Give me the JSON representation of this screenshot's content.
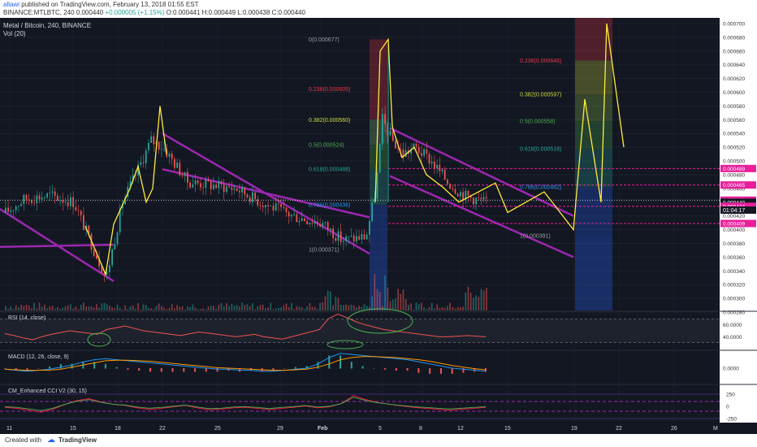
{
  "header": {
    "author": "allawi",
    "published": "published on TradingView.com, February 13, 2018 01:55 EST",
    "symbol": "BINANCE:MTLBTC, 240",
    "last": "0.000440",
    "change": "+0.000005 (+1.15%)",
    "open": "O:0.000441",
    "high": "H:0.000449",
    "low": "L:0.000438",
    "close": "C:0.000440"
  },
  "chart": {
    "title": "Metal / Bitcoin, 240, BINANCE",
    "volume_label": "Vol (20)",
    "countdown": "01:04:17",
    "colors": {
      "background": "#131722",
      "bull": "#26a69a",
      "bear": "#ef5350",
      "channel": "#9c27b0",
      "path": "#ffeb3b",
      "level": "#e91e9b"
    }
  },
  "chart_data": [
    {
      "type": "candlestick",
      "title": "Metal / Bitcoin, 240, BINANCE",
      "ylim": [
        0.00028,
        0.0007
      ],
      "price_ticks": [
        "0.000700",
        "0.000680",
        "0.000660",
        "0.000640",
        "0.000620",
        "0.000600",
        "0.000580",
        "0.000560",
        "0.000540",
        "0.000520",
        "0.000500",
        "0.000480",
        "0.000460",
        "0.000440",
        "0.000420",
        "0.000400",
        "0.000380",
        "0.000360",
        "0.000340",
        "0.000320",
        "0.000300",
        "0.000280"
      ],
      "x_ticks": [
        "11",
        "15",
        "18",
        "22",
        "25",
        "29",
        "Feb",
        "5",
        "8",
        "12",
        "15",
        "19",
        "22",
        "26",
        "M"
      ],
      "price_tags": [
        "0.000489",
        "0.000465",
        "0.000443",
        "0.000440",
        "0.000434",
        "0.000409"
      ],
      "fib_left": [
        {
          "label": "0(0.000677)",
          "value": 0.000677
        },
        {
          "label": "0.236(0.000605)",
          "value": 0.000605
        },
        {
          "label": "0.382(0.000560)",
          "value": 0.00056
        },
        {
          "label": "0.5(0.000524)",
          "value": 0.000524
        },
        {
          "label": "0.618(0.000488)",
          "value": 0.000488
        },
        {
          "label": "0.786(0.000436)",
          "value": 0.000436
        },
        {
          "label": "1(0.000371)",
          "value": 0.000371
        }
      ],
      "fib_right": [
        {
          "label": "0.236(0.000646)",
          "value": 0.000646
        },
        {
          "label": "0.382(0.000597)",
          "value": 0.000597
        },
        {
          "label": "0.5(0.000558)",
          "value": 0.000558
        },
        {
          "label": "0.618(0.000518)",
          "value": 0.000518
        },
        {
          "label": "0.786(0.000462)",
          "value": 0.000462
        },
        {
          "label": "1(0.000391)",
          "value": 0.000391
        }
      ],
      "projection": [
        {
          "x": 0,
          "price": 0.000405
        },
        {
          "x": 3,
          "price": 0.00044
        },
        {
          "x": 5,
          "price": 0.000418
        },
        {
          "x": 8,
          "price": 0.000463
        },
        {
          "x": 10,
          "price": 0.000435
        },
        {
          "x": 13,
          "price": 0.000503
        },
        {
          "x": 15,
          "price": 0.000437
        },
        {
          "x": 18,
          "price": 0.00059
        },
        {
          "x": 20,
          "price": 0.00037
        },
        {
          "x": 23,
          "price": 0.0007
        },
        {
          "x": 26,
          "price": 0.00052
        }
      ],
      "scenario": [
        {
          "x": 5,
          "price": 0.000463
        },
        {
          "x": 7,
          "price": 0.00047
        },
        {
          "x": 8,
          "price": 0.000447
        },
        {
          "x": 9,
          "price": 0.000405
        },
        {
          "x": 11,
          "price": 0.000422
        },
        {
          "x": 12,
          "price": 0.000394
        },
        {
          "x": 13,
          "price": 0.000595
        },
        {
          "x": 14,
          "price": 0.000437
        },
        {
          "x": 15,
          "price": 0.0007
        },
        {
          "x": 16,
          "price": 0.000515
        }
      ]
    },
    {
      "type": "line",
      "title": "RSI (14, close)",
      "ylim": [
        20,
        80
      ],
      "ticks": [
        "60.0000",
        "40.0000"
      ],
      "values": [
        45,
        42,
        38,
        35,
        40,
        44,
        47,
        50,
        48,
        46,
        44,
        52,
        55,
        58,
        54,
        50,
        48,
        46,
        44,
        42,
        45,
        48,
        46,
        44,
        42,
        40,
        42,
        44,
        40,
        38,
        36,
        40,
        44,
        48,
        52,
        70,
        78,
        72,
        65,
        60,
        56,
        52,
        50,
        48,
        46,
        44,
        42,
        40,
        40,
        41,
        42,
        41,
        40
      ]
    },
    {
      "type": "line",
      "title": "MACD (12, 26, close, 9)",
      "ticks": [
        "0.0000"
      ],
      "macd": [
        -1,
        -2,
        -3,
        -2,
        -1,
        1,
        3,
        6,
        8,
        9,
        8,
        7,
        6,
        5,
        4,
        3,
        2,
        1,
        0,
        -1,
        -1,
        -2,
        -2,
        -3,
        -3,
        -2,
        -1,
        0,
        4,
        10,
        14,
        13,
        12,
        11,
        10,
        9,
        8,
        6,
        4,
        2,
        0,
        -1,
        -2,
        -3
      ],
      "signal": [
        -1,
        -1.5,
        -2,
        -2,
        -1.8,
        -1,
        1,
        3,
        5,
        7,
        7.5,
        7.5,
        7,
        6.5,
        5.5,
        4.5,
        3.5,
        2.5,
        1.5,
        0.5,
        0,
        -0.5,
        -1,
        -1.5,
        -2,
        -2,
        -1.5,
        -1,
        1,
        4,
        8,
        10,
        11,
        11,
        10.5,
        10,
        9,
        8,
        6.5,
        4.5,
        2.5,
        1,
        -0.5,
        -1.5
      ]
    },
    {
      "type": "line",
      "title": "CM_Enhanced CCI V2 (30, 15)",
      "ticks": [
        "250",
        "0",
        "-250"
      ],
      "values": [
        -20,
        -40,
        -80,
        -120,
        -60,
        40,
        120,
        160,
        90,
        40,
        20,
        -30,
        -60,
        -40,
        -10,
        20,
        -30,
        -70,
        -60,
        -30,
        -20,
        -40,
        -70,
        -40,
        -20,
        10,
        -30,
        -10,
        60,
        220,
        140,
        80,
        40,
        10,
        -20,
        -40,
        -60,
        -80,
        -60,
        -40,
        -20
      ]
    }
  ],
  "footer": {
    "label": "Created with",
    "brand": "TradingView"
  }
}
